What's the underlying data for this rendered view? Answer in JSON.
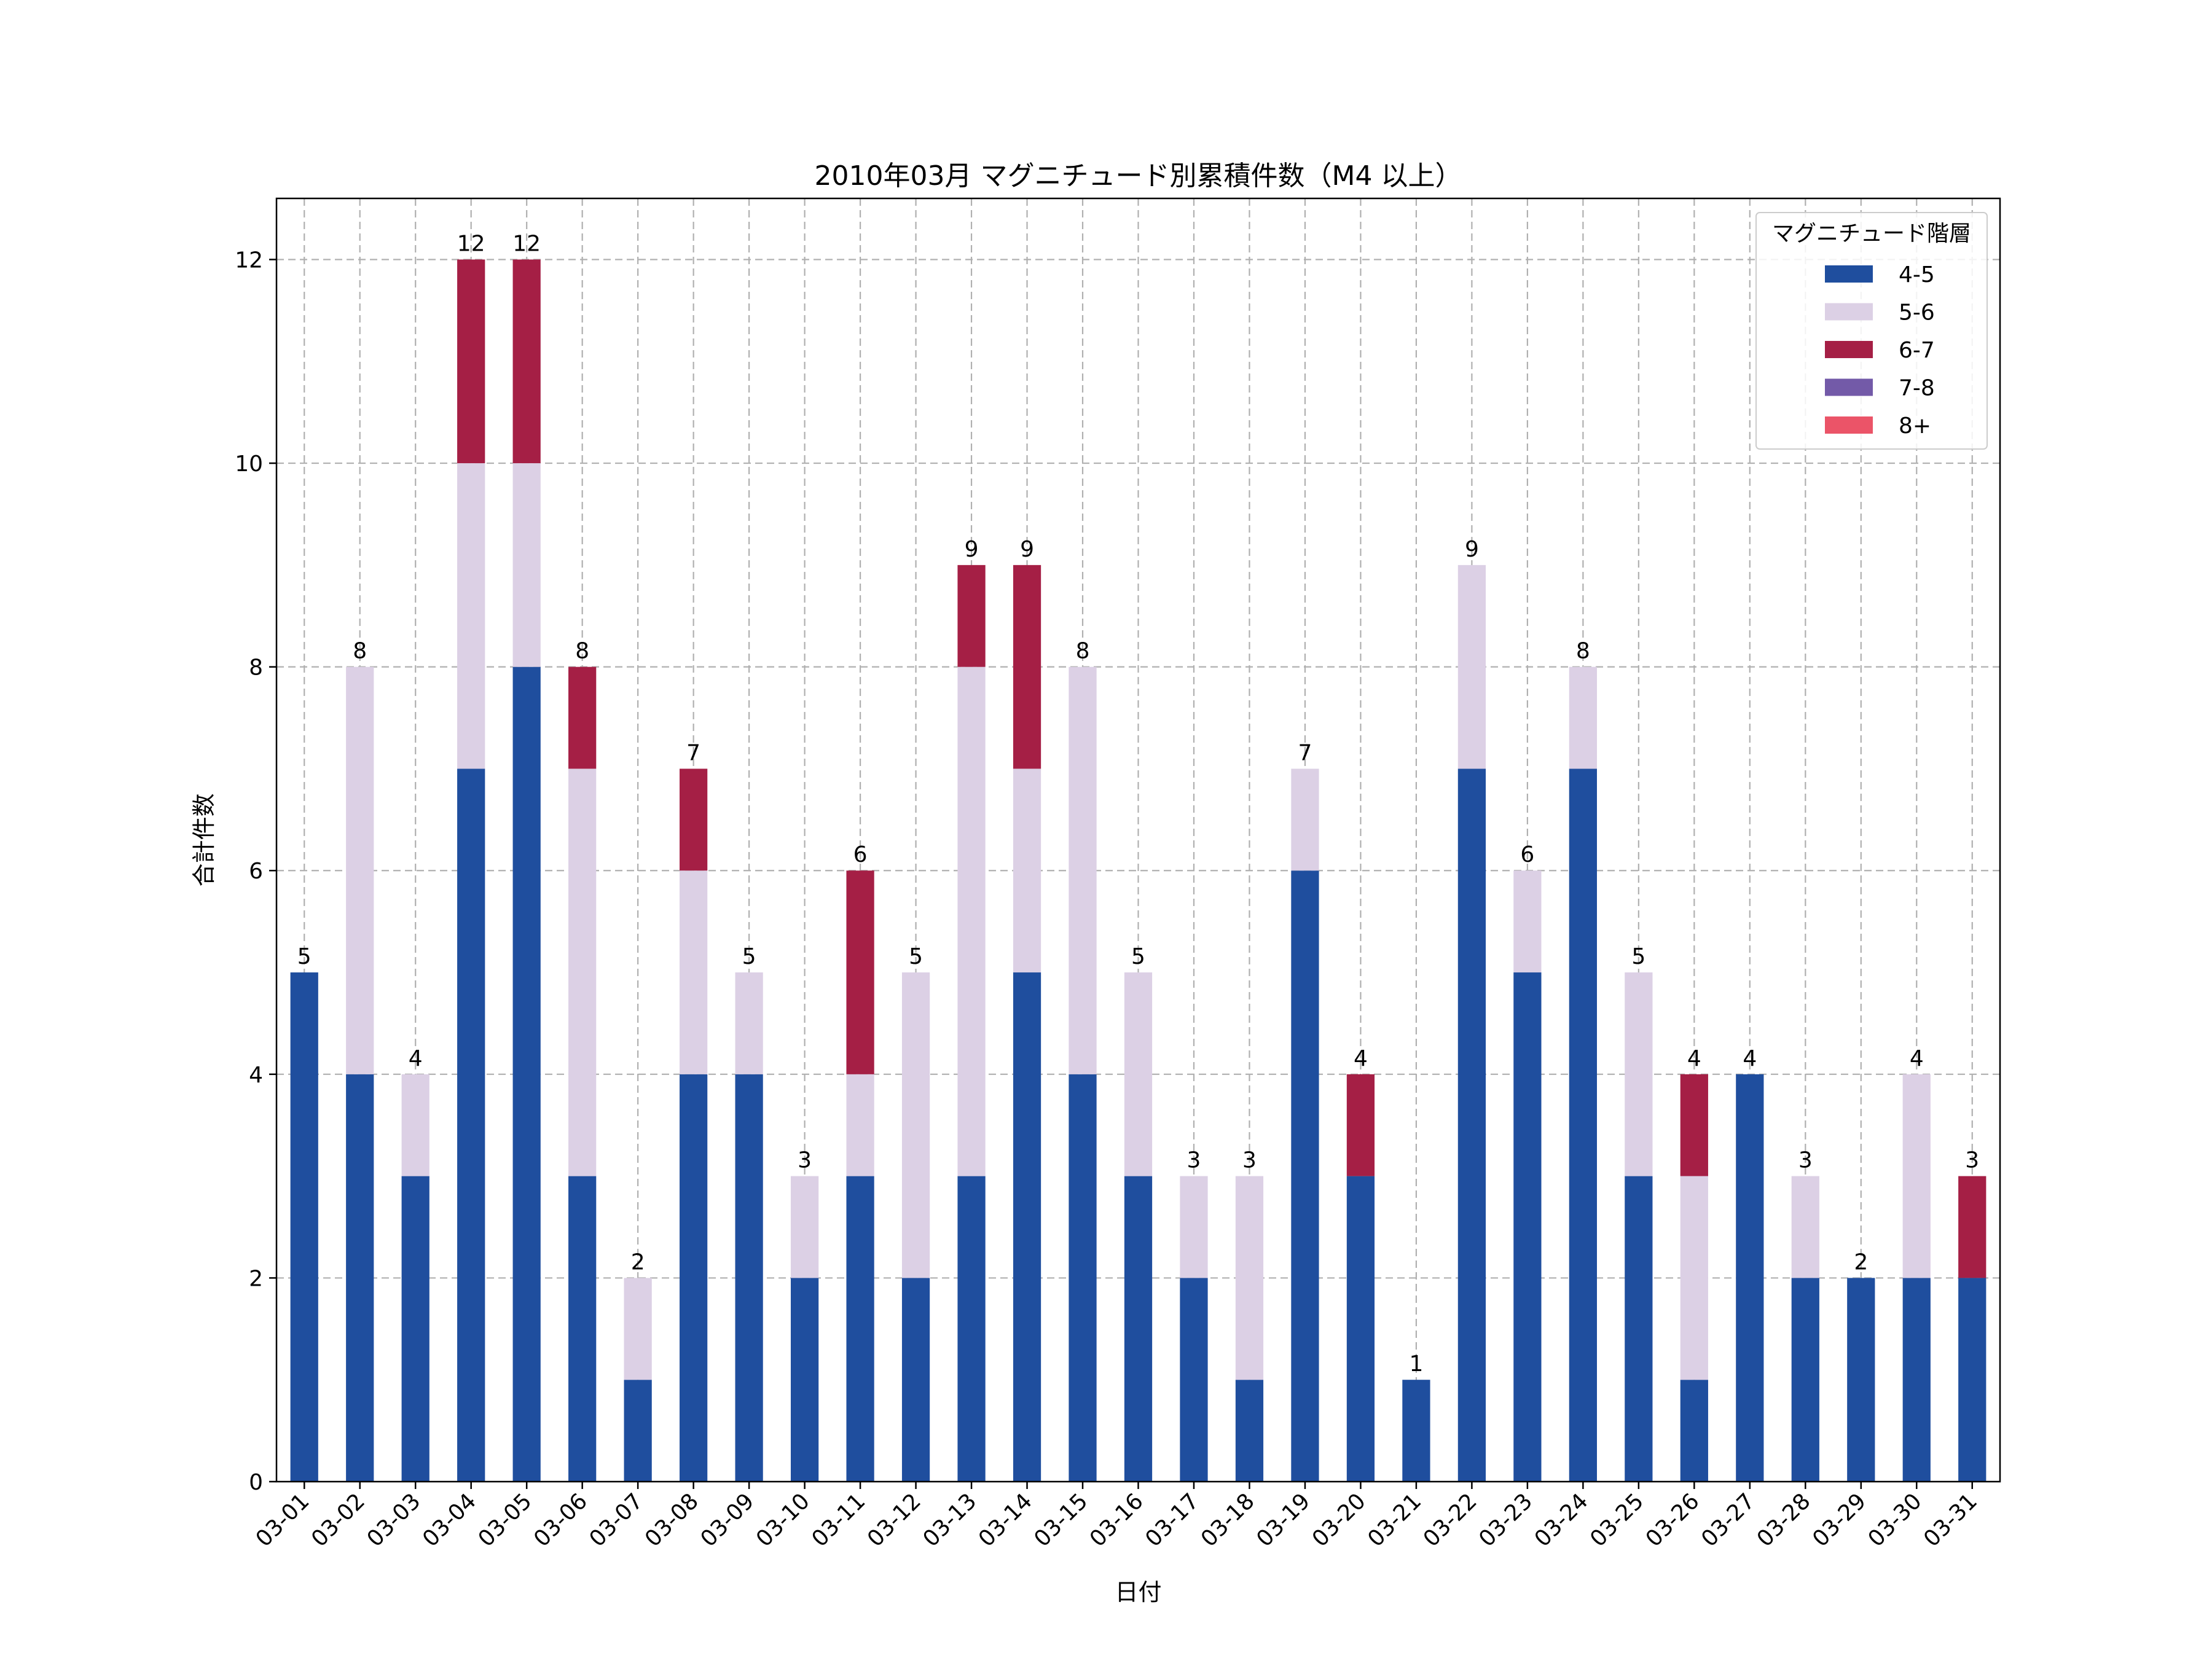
{
  "chart_data": {
    "type": "bar",
    "stacked": true,
    "title": "2010年03月 マグニチュード別累積件数（M4 以上）",
    "xlabel": "日付",
    "ylabel": "合計件数",
    "ylim": [
      0,
      12.6
    ],
    "yticks": [
      0,
      2,
      4,
      6,
      8,
      10,
      12
    ],
    "grid": true,
    "legend": {
      "title": "マグニチュード階層",
      "position": "top-right"
    },
    "categories": [
      "03-01",
      "03-02",
      "03-03",
      "03-04",
      "03-05",
      "03-06",
      "03-07",
      "03-08",
      "03-09",
      "03-10",
      "03-11",
      "03-12",
      "03-13",
      "03-14",
      "03-15",
      "03-16",
      "03-17",
      "03-18",
      "03-19",
      "03-20",
      "03-21",
      "03-22",
      "03-23",
      "03-24",
      "03-25",
      "03-26",
      "03-27",
      "03-28",
      "03-29",
      "03-30",
      "03-31"
    ],
    "series": [
      {
        "name": "4-5",
        "color": "#1f4e9e",
        "values": [
          5,
          4,
          3,
          7,
          8,
          3,
          1,
          4,
          4,
          2,
          3,
          2,
          3,
          5,
          4,
          3,
          2,
          1,
          6,
          3,
          1,
          7,
          5,
          7,
          3,
          1,
          4,
          2,
          2,
          2,
          2
        ]
      },
      {
        "name": "5-6",
        "color": "#dcd0e5",
        "values": [
          0,
          4,
          1,
          3,
          2,
          4,
          1,
          2,
          1,
          1,
          1,
          3,
          5,
          2,
          4,
          2,
          1,
          2,
          1,
          0,
          0,
          2,
          1,
          1,
          2,
          2,
          0,
          1,
          0,
          2,
          0
        ]
      },
      {
        "name": "6-7",
        "color": "#a51f45",
        "values": [
          0,
          0,
          0,
          2,
          2,
          1,
          0,
          1,
          0,
          0,
          2,
          0,
          1,
          2,
          0,
          0,
          0,
          0,
          0,
          1,
          0,
          0,
          0,
          0,
          0,
          1,
          0,
          0,
          0,
          0,
          1
        ]
      },
      {
        "name": "7-8",
        "color": "#735aa8",
        "values": [
          0,
          0,
          0,
          0,
          0,
          0,
          0,
          0,
          0,
          0,
          0,
          0,
          0,
          0,
          0,
          0,
          0,
          0,
          0,
          0,
          0,
          0,
          0,
          0,
          0,
          0,
          0,
          0,
          0,
          0,
          0
        ]
      },
      {
        "name": "8+",
        "color": "#eb5468",
        "values": [
          0,
          0,
          0,
          0,
          0,
          0,
          0,
          0,
          0,
          0,
          0,
          0,
          0,
          0,
          0,
          0,
          0,
          0,
          0,
          0,
          0,
          0,
          0,
          0,
          0,
          0,
          0,
          0,
          0,
          0,
          0
        ]
      }
    ],
    "totals": [
      5,
      8,
      4,
      12,
      12,
      8,
      2,
      7,
      5,
      3,
      6,
      5,
      9,
      9,
      8,
      5,
      3,
      3,
      7,
      4,
      1,
      9,
      6,
      8,
      5,
      4,
      4,
      3,
      2,
      4,
      3
    ]
  }
}
